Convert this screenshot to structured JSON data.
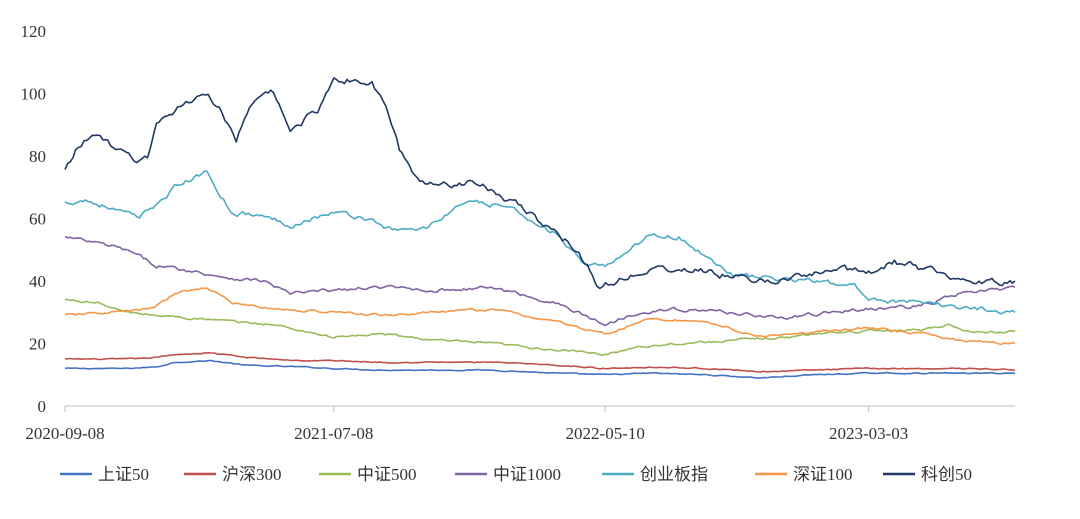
{
  "chart_data": {
    "type": "line",
    "title": "",
    "xlabel": "",
    "ylabel": "",
    "ylim": [
      0,
      120
    ],
    "yticks": [
      0,
      20,
      40,
      60,
      80,
      100,
      120
    ],
    "xlim": [
      "2020-09-08",
      "2023-08-15"
    ],
    "xticks": [
      "2020-09-08",
      "2021-07-08",
      "2022-05-10",
      "2023-03-03"
    ],
    "grid": false,
    "legend_position": "bottom",
    "series": [
      {
        "name": "上证50",
        "color": "#4472C4",
        "points": [
          [
            "2020-09-08",
            12
          ],
          [
            "2020-11-15",
            12
          ],
          [
            "2020-12-20",
            12.5
          ],
          [
            "2021-01-10",
            14
          ],
          [
            "2021-02-20",
            14.5
          ],
          [
            "2021-04-01",
            13
          ],
          [
            "2021-06-01",
            12.5
          ],
          [
            "2021-07-08",
            12
          ],
          [
            "2021-09-01",
            11.5
          ],
          [
            "2021-11-01",
            11.5
          ],
          [
            "2022-01-01",
            11.5
          ],
          [
            "2022-03-15",
            10.5
          ],
          [
            "2022-05-10",
            10
          ],
          [
            "2022-07-01",
            10.5
          ],
          [
            "2022-09-01",
            10
          ],
          [
            "2022-11-01",
            9
          ],
          [
            "2023-01-01",
            10
          ],
          [
            "2023-03-03",
            10.5
          ],
          [
            "2023-05-01",
            10.5
          ],
          [
            "2023-07-01",
            10.5
          ],
          [
            "2023-08-15",
            10.5
          ]
        ]
      },
      {
        "name": "沪深300",
        "color": "#C0504D",
        "points": [
          [
            "2020-09-08",
            15
          ],
          [
            "2020-11-15",
            15
          ],
          [
            "2020-12-20",
            15.5
          ],
          [
            "2021-01-10",
            16.5
          ],
          [
            "2021-02-20",
            17
          ],
          [
            "2021-04-01",
            15.5
          ],
          [
            "2021-06-01",
            14.5
          ],
          [
            "2021-07-08",
            14.5
          ],
          [
            "2021-09-01",
            14
          ],
          [
            "2021-11-01",
            14
          ],
          [
            "2022-01-01",
            14
          ],
          [
            "2022-03-15",
            13
          ],
          [
            "2022-05-10",
            12
          ],
          [
            "2022-07-01",
            12.5
          ],
          [
            "2022-09-01",
            12
          ],
          [
            "2022-11-01",
            11
          ],
          [
            "2023-01-01",
            11.5
          ],
          [
            "2023-03-03",
            12
          ],
          [
            "2023-05-01",
            12
          ],
          [
            "2023-07-01",
            12
          ],
          [
            "2023-08-15",
            11.5
          ]
        ]
      },
      {
        "name": "中证500",
        "color": "#9BBB59",
        "points": [
          [
            "2020-09-08",
            34
          ],
          [
            "2020-10-15",
            33
          ],
          [
            "2020-11-15",
            30
          ],
          [
            "2020-12-20",
            29
          ],
          [
            "2021-02-01",
            28
          ],
          [
            "2021-03-15",
            27
          ],
          [
            "2021-05-01",
            26
          ],
          [
            "2021-07-08",
            22
          ],
          [
            "2021-09-01",
            23
          ],
          [
            "2021-11-01",
            21
          ],
          [
            "2022-01-01",
            20
          ],
          [
            "2022-03-15",
            18
          ],
          [
            "2022-05-10",
            16.5
          ],
          [
            "2022-06-15",
            19
          ],
          [
            "2022-08-01",
            20
          ],
          [
            "2022-10-01",
            21
          ],
          [
            "2022-12-01",
            22
          ],
          [
            "2023-01-15",
            23.5
          ],
          [
            "2023-03-03",
            24
          ],
          [
            "2023-05-01",
            24.5
          ],
          [
            "2023-06-01",
            26
          ],
          [
            "2023-07-01",
            23.5
          ],
          [
            "2023-08-15",
            24
          ]
        ]
      },
      {
        "name": "中证1000",
        "color": "#8064A2",
        "points": [
          [
            "2020-09-08",
            54
          ],
          [
            "2020-10-15",
            52
          ],
          [
            "2020-11-15",
            50
          ],
          [
            "2020-12-20",
            45
          ],
          [
            "2021-02-01",
            43
          ],
          [
            "2021-03-15",
            41
          ],
          [
            "2021-04-20",
            40
          ],
          [
            "2021-05-20",
            36
          ],
          [
            "2021-07-08",
            37
          ],
          [
            "2021-09-01",
            38
          ],
          [
            "2021-11-01",
            37
          ],
          [
            "2022-01-01",
            38
          ],
          [
            "2022-03-15",
            33
          ],
          [
            "2022-05-10",
            26
          ],
          [
            "2022-06-15",
            30
          ],
          [
            "2022-08-01",
            31
          ],
          [
            "2022-10-01",
            30
          ],
          [
            "2022-12-01",
            28
          ],
          [
            "2023-01-15",
            30
          ],
          [
            "2023-03-03",
            31
          ],
          [
            "2023-05-01",
            32
          ],
          [
            "2023-06-15",
            36
          ],
          [
            "2023-07-20",
            37
          ],
          [
            "2023-08-15",
            38
          ]
        ]
      },
      {
        "name": "创业板指",
        "color": "#4BACC6",
        "points": [
          [
            "2020-09-08",
            65
          ],
          [
            "2020-10-01",
            66
          ],
          [
            "2020-11-01",
            63
          ],
          [
            "2020-12-01",
            60
          ],
          [
            "2021-01-10",
            70
          ],
          [
            "2021-02-15",
            75
          ],
          [
            "2021-03-15",
            62
          ],
          [
            "2021-04-15",
            61
          ],
          [
            "2021-05-20",
            58
          ],
          [
            "2021-07-08",
            62
          ],
          [
            "2021-08-15",
            60
          ],
          [
            "2021-09-15",
            56
          ],
          [
            "2021-10-20",
            57
          ],
          [
            "2021-12-01",
            65
          ],
          [
            "2022-01-15",
            64
          ],
          [
            "2022-02-15",
            60
          ],
          [
            "2022-03-15",
            55
          ],
          [
            "2022-04-20",
            44
          ],
          [
            "2022-05-10",
            45
          ],
          [
            "2022-06-01",
            49
          ],
          [
            "2022-07-01",
            55
          ],
          [
            "2022-08-01",
            54
          ],
          [
            "2022-09-01",
            48
          ],
          [
            "2022-10-01",
            42
          ],
          [
            "2022-11-01",
            41
          ],
          [
            "2023-01-01",
            40
          ],
          [
            "2023-02-15",
            38
          ],
          [
            "2023-03-03",
            35
          ],
          [
            "2023-04-15",
            33
          ],
          [
            "2023-06-01",
            32
          ],
          [
            "2023-07-15",
            31
          ],
          [
            "2023-08-15",
            30
          ]
        ]
      },
      {
        "name": "深证100",
        "color": "#F79646",
        "points": [
          [
            "2020-09-08",
            29
          ],
          [
            "2020-11-01",
            30
          ],
          [
            "2020-12-15",
            31
          ],
          [
            "2021-01-10",
            36
          ],
          [
            "2021-02-15",
            38
          ],
          [
            "2021-03-15",
            33
          ],
          [
            "2021-05-01",
            31
          ],
          [
            "2021-07-08",
            30
          ],
          [
            "2021-09-01",
            29
          ],
          [
            "2021-11-01",
            30
          ],
          [
            "2022-01-01",
            31
          ],
          [
            "2022-03-15",
            27
          ],
          [
            "2022-05-10",
            23
          ],
          [
            "2022-07-01",
            28
          ],
          [
            "2022-09-01",
            27
          ],
          [
            "2022-11-01",
            22
          ],
          [
            "2023-01-15",
            24
          ],
          [
            "2023-03-03",
            25
          ],
          [
            "2023-05-01",
            23
          ],
          [
            "2023-06-15",
            21
          ],
          [
            "2023-08-15",
            20
          ]
        ]
      },
      {
        "name": "科创50",
        "color": "#1F3864",
        "points": [
          [
            "2020-09-08",
            75
          ],
          [
            "2020-09-20",
            82
          ],
          [
            "2020-10-15",
            88
          ],
          [
            "2020-11-01",
            82
          ],
          [
            "2020-11-25",
            79
          ],
          [
            "2020-12-10",
            79
          ],
          [
            "2020-12-20",
            90
          ],
          [
            "2021-01-10",
            95
          ],
          [
            "2021-02-10",
            100
          ],
          [
            "2021-03-01",
            96
          ],
          [
            "2021-03-20",
            85
          ],
          [
            "2021-04-10",
            98
          ],
          [
            "2021-05-01",
            100
          ],
          [
            "2021-05-20",
            88
          ],
          [
            "2021-06-20",
            95
          ],
          [
            "2021-07-08",
            105
          ],
          [
            "2021-08-01",
            104
          ],
          [
            "2021-08-20",
            103
          ],
          [
            "2021-09-05",
            96
          ],
          [
            "2021-09-20",
            82
          ],
          [
            "2021-10-10",
            72
          ],
          [
            "2021-11-15",
            71
          ],
          [
            "2021-12-20",
            72
          ],
          [
            "2022-01-10",
            68
          ],
          [
            "2022-02-01",
            64
          ],
          [
            "2022-03-01",
            58
          ],
          [
            "2022-04-01",
            52
          ],
          [
            "2022-04-20",
            45
          ],
          [
            "2022-05-01",
            37
          ],
          [
            "2022-05-20",
            40
          ],
          [
            "2022-06-20",
            43
          ],
          [
            "2022-08-01",
            44
          ],
          [
            "2022-09-01",
            43
          ],
          [
            "2022-10-01",
            41
          ],
          [
            "2022-11-15",
            40
          ],
          [
            "2023-01-01",
            42
          ],
          [
            "2023-02-01",
            44
          ],
          [
            "2023-03-03",
            43
          ],
          [
            "2023-04-01",
            46
          ],
          [
            "2023-05-01",
            44
          ],
          [
            "2023-06-15",
            41
          ],
          [
            "2023-07-20",
            40
          ],
          [
            "2023-08-15",
            40
          ]
        ]
      }
    ]
  }
}
